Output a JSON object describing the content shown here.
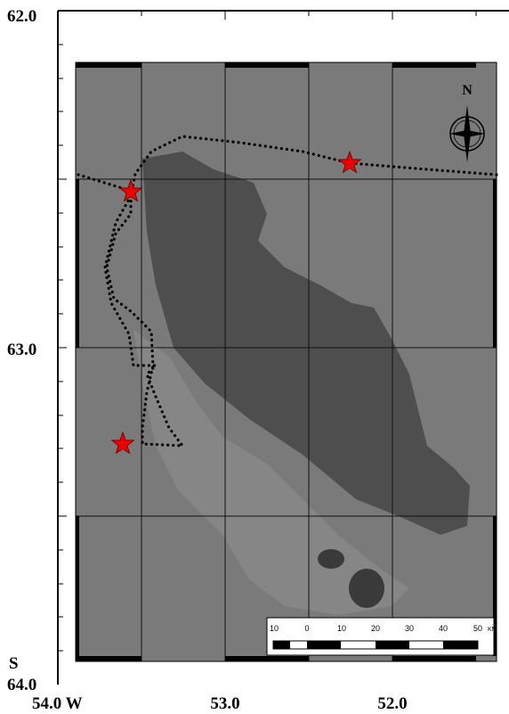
{
  "axes": {
    "lat_labels": [
      "62.0",
      "63.0",
      "64.0"
    ],
    "lat_hemisphere": "S",
    "lon_labels": [
      "54.0 W",
      "53.0",
      "52.0"
    ]
  },
  "compass": {
    "label": "N"
  },
  "scale_bar": {
    "labels": [
      "10",
      "0",
      "10",
      "20",
      "30",
      "40",
      "50"
    ],
    "unit": "KM"
  }
}
